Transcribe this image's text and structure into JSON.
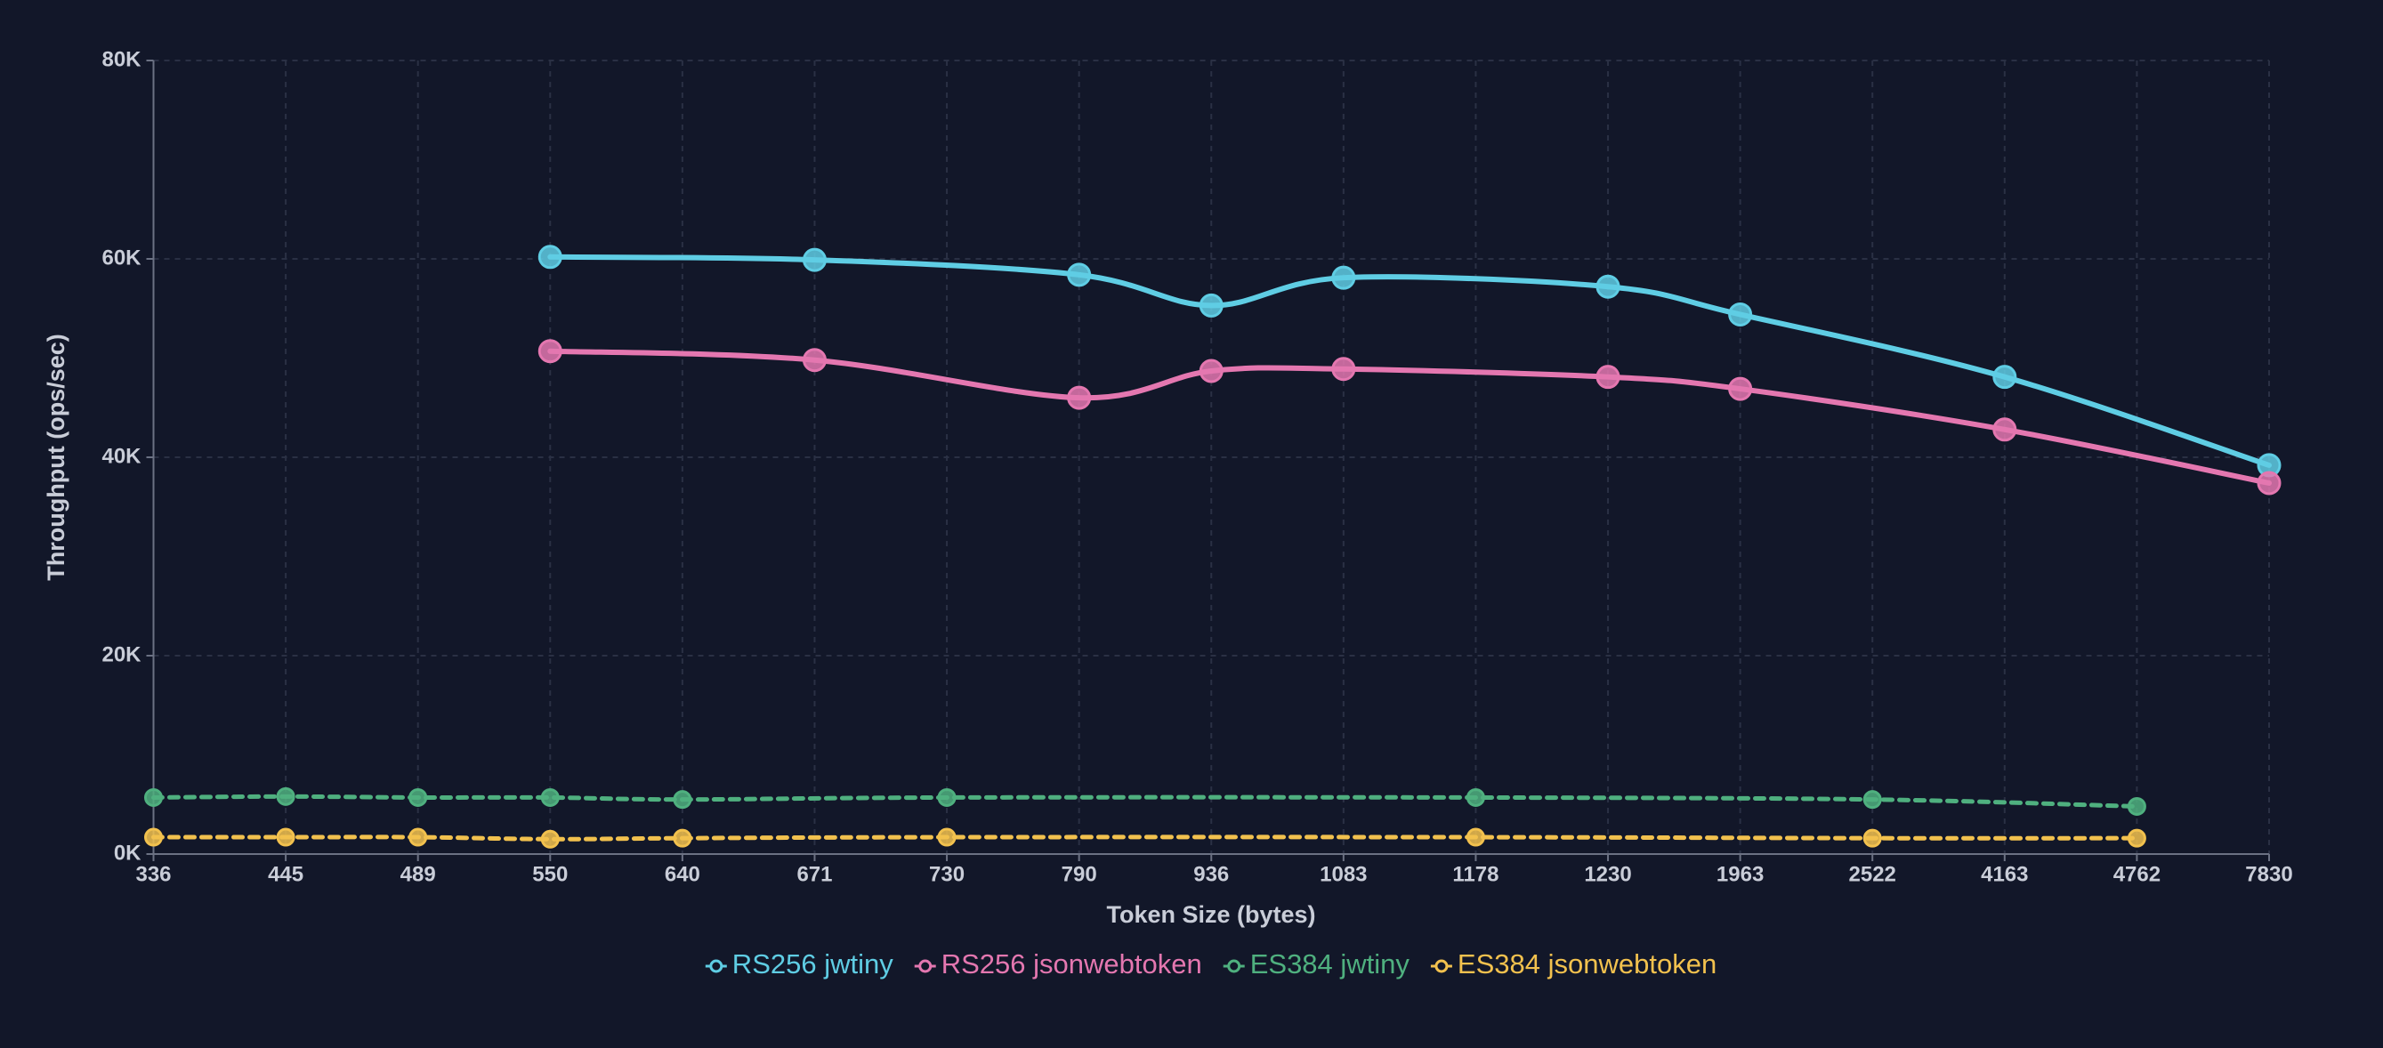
{
  "chart_data": {
    "type": "line",
    "x_label": "Token Size (bytes)",
    "y_label": "Throughput (ops/sec)",
    "categories": [
      "336",
      "445",
      "489",
      "550",
      "640",
      "671",
      "730",
      "790",
      "936",
      "1083",
      "1178",
      "1230",
      "1963",
      "2522",
      "4163",
      "4762",
      "7830"
    ],
    "series": [
      {
        "name": "RS256 jwtiny",
        "color": "#5fcde4",
        "dashed": false,
        "values": [
          null,
          null,
          null,
          60200,
          null,
          59900,
          null,
          58400,
          55300,
          58100,
          null,
          57200,
          54400,
          null,
          48100,
          null,
          39200
        ]
      },
      {
        "name": "RS256 jsonwebtoken",
        "color": "#e477b0",
        "dashed": false,
        "values": [
          null,
          null,
          null,
          50700,
          null,
          49800,
          null,
          46000,
          48700,
          48900,
          null,
          48100,
          46900,
          null,
          42800,
          null,
          37400
        ]
      },
      {
        "name": "ES384 jwtiny",
        "color": "#4fb07f",
        "dashed": true,
        "values": [
          5700,
          5800,
          5700,
          5700,
          5500,
          null,
          5700,
          null,
          null,
          null,
          5700,
          null,
          null,
          5500,
          null,
          4800,
          null
        ]
      },
      {
        "name": "ES384 jsonwebtoken",
        "color": "#f2c14e",
        "dashed": true,
        "values": [
          1700,
          1700,
          1700,
          1500,
          1600,
          null,
          1700,
          null,
          null,
          null,
          1700,
          null,
          null,
          1600,
          null,
          1600,
          null
        ]
      }
    ],
    "ylim": [
      0,
      80000
    ],
    "yticks": [
      {
        "value": 0,
        "label": "0K"
      },
      {
        "value": 20000,
        "label": "20K"
      },
      {
        "value": 40000,
        "label": "40K"
      },
      {
        "value": 60000,
        "label": "60K"
      },
      {
        "value": 80000,
        "label": "80K"
      }
    ],
    "grid": true,
    "connect_nulls": true,
    "legend": "bottom"
  }
}
